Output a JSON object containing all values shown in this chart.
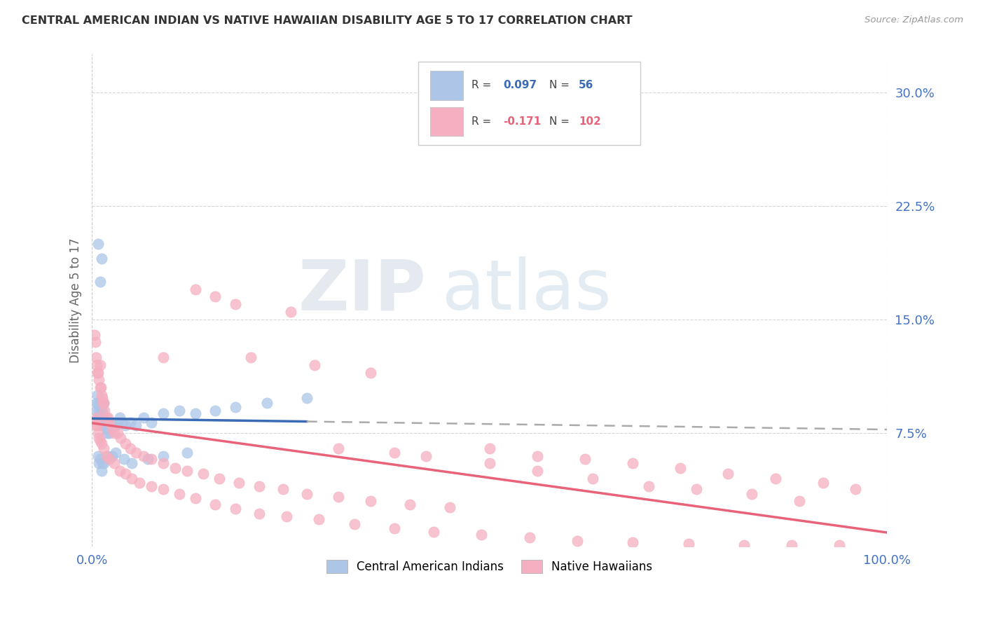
{
  "title": "CENTRAL AMERICAN INDIAN VS NATIVE HAWAIIAN DISABILITY AGE 5 TO 17 CORRELATION CHART",
  "source": "Source: ZipAtlas.com",
  "ylabel": "Disability Age 5 to 17",
  "legend_label1": "Central American Indians",
  "legend_label2": "Native Hawaiians",
  "blue_color": "#adc6e8",
  "pink_color": "#f5afc0",
  "blue_line_color": "#3b6bb5",
  "pink_line_color": "#e8637a",
  "dash_color": "#aaaaaa",
  "xlim": [
    0.0,
    1.0
  ],
  "ylim": [
    0.0,
    0.325
  ],
  "yticks": [
    0.075,
    0.15,
    0.225,
    0.3
  ],
  "ytick_labels": [
    "7.5%",
    "15.0%",
    "22.5%",
    "30.0%"
  ],
  "xticks": [
    0.0,
    1.0
  ],
  "xtick_labels": [
    "0.0%",
    "100.0%"
  ],
  "watermark_zip": "ZIP",
  "watermark_atlas": "atlas",
  "blue_x": [
    0.005,
    0.006,
    0.007,
    0.008,
    0.008,
    0.009,
    0.01,
    0.01,
    0.011,
    0.011,
    0.012,
    0.013,
    0.013,
    0.014,
    0.015,
    0.015,
    0.016,
    0.017,
    0.018,
    0.019,
    0.02,
    0.022,
    0.025,
    0.028,
    0.03,
    0.032,
    0.035,
    0.038,
    0.042,
    0.048,
    0.055,
    0.065,
    0.075,
    0.09,
    0.11,
    0.13,
    0.155,
    0.18,
    0.22,
    0.27,
    0.008,
    0.009,
    0.01,
    0.012,
    0.013,
    0.015,
    0.02,
    0.025,
    0.03,
    0.04,
    0.05,
    0.07,
    0.09,
    0.12,
    0.008,
    0.01,
    0.012
  ],
  "blue_y": [
    0.09,
    0.095,
    0.1,
    0.085,
    0.095,
    0.09,
    0.085,
    0.095,
    0.08,
    0.09,
    0.085,
    0.08,
    0.09,
    0.085,
    0.085,
    0.095,
    0.08,
    0.08,
    0.078,
    0.075,
    0.078,
    0.075,
    0.08,
    0.082,
    0.08,
    0.082,
    0.085,
    0.082,
    0.08,
    0.082,
    0.08,
    0.085,
    0.082,
    0.088,
    0.09,
    0.088,
    0.09,
    0.092,
    0.095,
    0.098,
    0.06,
    0.055,
    0.058,
    0.05,
    0.055,
    0.055,
    0.06,
    0.06,
    0.062,
    0.058,
    0.055,
    0.058,
    0.06,
    0.062,
    0.2,
    0.175,
    0.19
  ],
  "pink_x": [
    0.003,
    0.004,
    0.005,
    0.006,
    0.007,
    0.008,
    0.009,
    0.01,
    0.01,
    0.011,
    0.012,
    0.013,
    0.014,
    0.015,
    0.016,
    0.018,
    0.02,
    0.022,
    0.025,
    0.028,
    0.032,
    0.036,
    0.042,
    0.048,
    0.055,
    0.065,
    0.075,
    0.09,
    0.105,
    0.12,
    0.14,
    0.16,
    0.185,
    0.21,
    0.24,
    0.27,
    0.31,
    0.35,
    0.4,
    0.45,
    0.5,
    0.56,
    0.62,
    0.68,
    0.74,
    0.8,
    0.86,
    0.92,
    0.96,
    0.005,
    0.006,
    0.007,
    0.008,
    0.009,
    0.01,
    0.012,
    0.015,
    0.018,
    0.022,
    0.028,
    0.035,
    0.042,
    0.05,
    0.06,
    0.075,
    0.09,
    0.11,
    0.13,
    0.155,
    0.18,
    0.21,
    0.245,
    0.285,
    0.33,
    0.38,
    0.43,
    0.49,
    0.55,
    0.61,
    0.68,
    0.75,
    0.82,
    0.88,
    0.94,
    0.31,
    0.38,
    0.42,
    0.5,
    0.56,
    0.63,
    0.7,
    0.76,
    0.83,
    0.89,
    0.2,
    0.28,
    0.35,
    0.155,
    0.25,
    0.13,
    0.18,
    0.09
  ],
  "pink_y": [
    0.14,
    0.135,
    0.125,
    0.12,
    0.115,
    0.115,
    0.11,
    0.105,
    0.12,
    0.105,
    0.1,
    0.098,
    0.095,
    0.095,
    0.09,
    0.085,
    0.085,
    0.082,
    0.078,
    0.075,
    0.075,
    0.072,
    0.068,
    0.065,
    0.062,
    0.06,
    0.058,
    0.055,
    0.052,
    0.05,
    0.048,
    0.045,
    0.042,
    0.04,
    0.038,
    0.035,
    0.033,
    0.03,
    0.028,
    0.026,
    0.065,
    0.06,
    0.058,
    0.055,
    0.052,
    0.048,
    0.045,
    0.042,
    0.038,
    0.08,
    0.085,
    0.08,
    0.075,
    0.072,
    0.07,
    0.068,
    0.065,
    0.06,
    0.058,
    0.055,
    0.05,
    0.048,
    0.045,
    0.042,
    0.04,
    0.038,
    0.035,
    0.032,
    0.028,
    0.025,
    0.022,
    0.02,
    0.018,
    0.015,
    0.012,
    0.01,
    0.008,
    0.006,
    0.004,
    0.003,
    0.002,
    0.001,
    0.001,
    0.001,
    0.065,
    0.062,
    0.06,
    0.055,
    0.05,
    0.045,
    0.04,
    0.038,
    0.035,
    0.03,
    0.125,
    0.12,
    0.115,
    0.165,
    0.155,
    0.17,
    0.16,
    0.125
  ]
}
